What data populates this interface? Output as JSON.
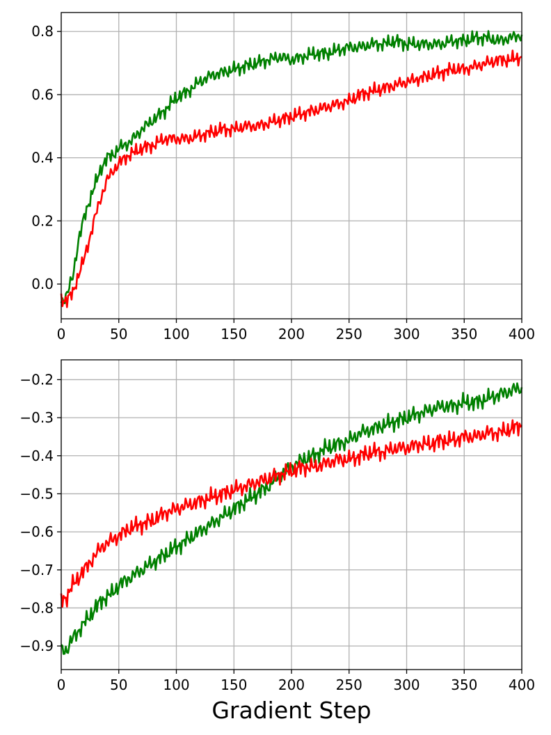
{
  "figure": {
    "xlabel": "Gradient Step"
  },
  "colors": {
    "series_green": "#008000",
    "series_red": "#ff0000",
    "grid": "#b0b0b0",
    "axes": "#000000"
  },
  "chart_data": [
    {
      "type": "line",
      "xlim": [
        0,
        400
      ],
      "ylim": [
        -0.11,
        0.86
      ],
      "xticks": [
        0,
        50,
        100,
        150,
        200,
        250,
        300,
        350,
        400
      ],
      "yticks": [
        0.0,
        0.2,
        0.4,
        0.6,
        0.8
      ],
      "ytick_labels": [
        "0.0",
        "0.2",
        "0.4",
        "0.6",
        "0.8"
      ],
      "grid": true,
      "x": [
        0,
        5,
        10,
        15,
        20,
        25,
        30,
        35,
        40,
        45,
        50,
        55,
        60,
        70,
        80,
        90,
        100,
        110,
        120,
        130,
        140,
        150,
        160,
        170,
        180,
        190,
        200,
        210,
        220,
        230,
        240,
        250,
        260,
        270,
        280,
        290,
        300,
        310,
        320,
        330,
        340,
        350,
        360,
        370,
        380,
        390,
        400
      ],
      "series": [
        {
          "color": "green",
          "values": [
            -0.06,
            -0.03,
            0.02,
            0.14,
            0.21,
            0.27,
            0.32,
            0.37,
            0.4,
            0.41,
            0.43,
            0.44,
            0.45,
            0.49,
            0.52,
            0.55,
            0.59,
            0.61,
            0.64,
            0.66,
            0.67,
            0.68,
            0.69,
            0.7,
            0.71,
            0.72,
            0.71,
            0.72,
            0.73,
            0.73,
            0.74,
            0.75,
            0.75,
            0.76,
            0.76,
            0.77,
            0.76,
            0.76,
            0.76,
            0.76,
            0.77,
            0.77,
            0.78,
            0.78,
            0.77,
            0.78,
            0.79
          ]
        },
        {
          "color": "red",
          "values": [
            -0.05,
            -0.05,
            -0.03,
            0.03,
            0.08,
            0.15,
            0.22,
            0.28,
            0.33,
            0.36,
            0.38,
            0.4,
            0.41,
            0.43,
            0.44,
            0.46,
            0.46,
            0.46,
            0.47,
            0.48,
            0.49,
            0.49,
            0.5,
            0.5,
            0.51,
            0.52,
            0.53,
            0.54,
            0.55,
            0.56,
            0.57,
            0.58,
            0.6,
            0.61,
            0.62,
            0.63,
            0.64,
            0.65,
            0.66,
            0.67,
            0.68,
            0.68,
            0.69,
            0.7,
            0.71,
            0.71,
            0.72
          ]
        }
      ]
    },
    {
      "type": "line",
      "xlim": [
        0,
        400
      ],
      "ylim": [
        -0.962,
        -0.148
      ],
      "xticks": [
        0,
        50,
        100,
        150,
        200,
        250,
        300,
        350,
        400
      ],
      "yticks": [
        -0.9,
        -0.8,
        -0.7,
        -0.6,
        -0.5,
        -0.4,
        -0.3,
        -0.2
      ],
      "ytick_labels": [
        "−0.9",
        "−0.8",
        "−0.7",
        "−0.6",
        "−0.5",
        "−0.4",
        "−0.3",
        "−0.2"
      ],
      "grid": true,
      "x": [
        0,
        5,
        10,
        15,
        20,
        25,
        30,
        35,
        40,
        45,
        50,
        55,
        60,
        70,
        80,
        90,
        100,
        110,
        120,
        130,
        140,
        150,
        160,
        170,
        180,
        190,
        200,
        210,
        220,
        230,
        240,
        250,
        260,
        270,
        280,
        290,
        300,
        310,
        320,
        330,
        340,
        350,
        360,
        370,
        380,
        390,
        400
      ],
      "series": [
        {
          "color": "green",
          "values": [
            -0.91,
            -0.91,
            -0.88,
            -0.86,
            -0.84,
            -0.82,
            -0.8,
            -0.78,
            -0.77,
            -0.76,
            -0.74,
            -0.73,
            -0.72,
            -0.7,
            -0.68,
            -0.66,
            -0.64,
            -0.62,
            -0.6,
            -0.58,
            -0.56,
            -0.54,
            -0.52,
            -0.5,
            -0.48,
            -0.45,
            -0.43,
            -0.41,
            -0.4,
            -0.38,
            -0.37,
            -0.36,
            -0.34,
            -0.33,
            -0.32,
            -0.31,
            -0.3,
            -0.29,
            -0.28,
            -0.27,
            -0.27,
            -0.26,
            -0.26,
            -0.25,
            -0.24,
            -0.23,
            -0.22
          ]
        },
        {
          "color": "red",
          "values": [
            -0.78,
            -0.77,
            -0.74,
            -0.72,
            -0.7,
            -0.68,
            -0.66,
            -0.64,
            -0.63,
            -0.62,
            -0.61,
            -0.6,
            -0.59,
            -0.58,
            -0.57,
            -0.55,
            -0.54,
            -0.53,
            -0.52,
            -0.51,
            -0.5,
            -0.49,
            -0.48,
            -0.47,
            -0.46,
            -0.45,
            -0.44,
            -0.43,
            -0.43,
            -0.42,
            -0.41,
            -0.41,
            -0.4,
            -0.39,
            -0.39,
            -0.38,
            -0.38,
            -0.37,
            -0.37,
            -0.36,
            -0.36,
            -0.35,
            -0.35,
            -0.34,
            -0.34,
            -0.33,
            -0.32
          ]
        }
      ]
    }
  ]
}
